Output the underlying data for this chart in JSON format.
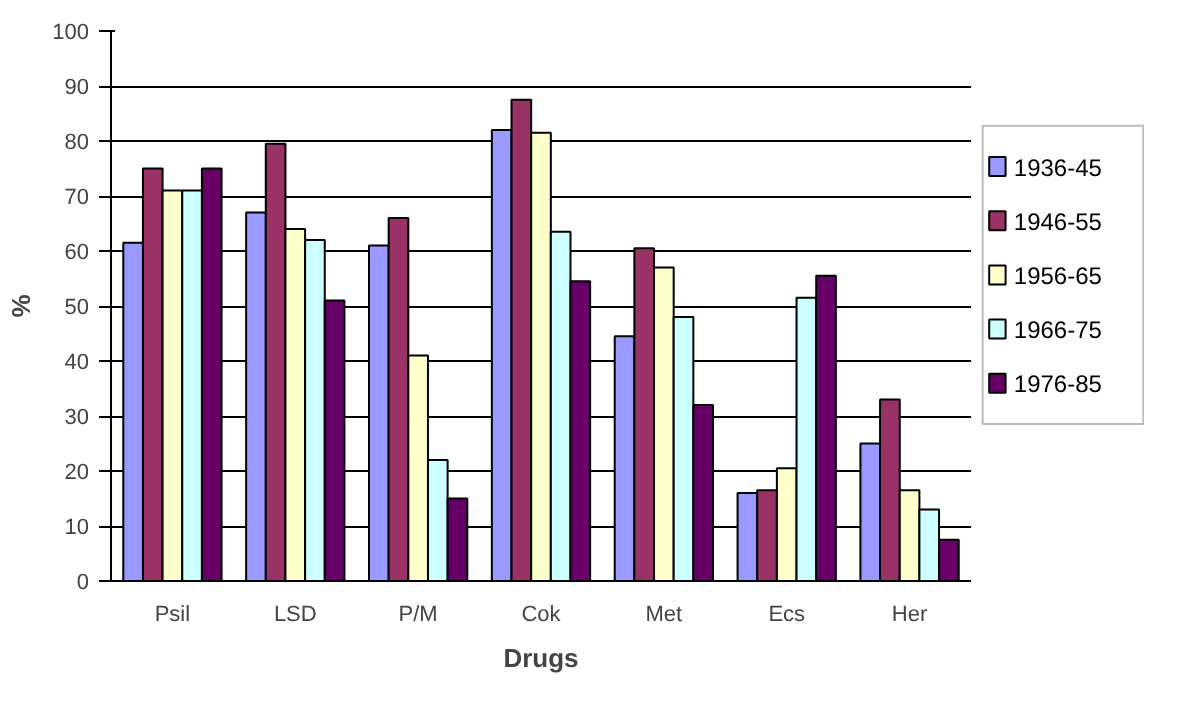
{
  "chart_data": {
    "type": "bar",
    "xlabel": "Drugs",
    "ylabel": "%",
    "categories": [
      "Psil",
      "LSD",
      "P/M",
      "Cok",
      "Met",
      "Ecs",
      "Her"
    ],
    "series": [
      {
        "name": "1936-45",
        "color": "#9999ff",
        "values": [
          61.5,
          67,
          61,
          82,
          44.5,
          16,
          25
        ]
      },
      {
        "name": "1946-55",
        "color": "#993366",
        "values": [
          75,
          79.5,
          66,
          87.5,
          60.5,
          16.5,
          33
        ]
      },
      {
        "name": "1956-65",
        "color": "#ffffcc",
        "values": [
          71,
          64,
          41,
          81.5,
          57,
          20.5,
          16.5
        ]
      },
      {
        "name": "1966-75",
        "color": "#ccffff",
        "values": [
          71,
          62,
          22,
          63.5,
          48,
          51.5,
          13
        ]
      },
      {
        "name": "1976-85",
        "color": "#660066",
        "values": [
          75,
          51,
          15,
          54.5,
          32,
          55.5,
          7.5
        ]
      }
    ],
    "ylim": [
      0,
      100
    ],
    "yticks": [
      0,
      10,
      20,
      30,
      40,
      50,
      60,
      70,
      80,
      90,
      100
    ],
    "grid": "y",
    "legend": "right"
  }
}
